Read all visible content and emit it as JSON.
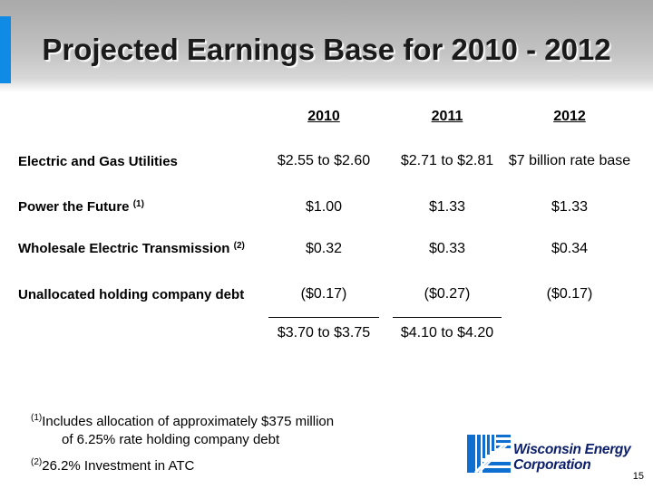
{
  "title": "Projected Earnings Base for 2010 - 2012",
  "columns": [
    "2010",
    "2011",
    "2012"
  ],
  "rows": [
    {
      "label": "Electric and Gas Utilities",
      "note": "",
      "values": [
        "$2.55 to $2.60",
        "$2.71 to $2.81",
        "$7 billion rate base"
      ]
    },
    {
      "label": "Power the Future",
      "note": "(1)",
      "values": [
        "$1.00",
        "$1.33",
        "$1.33"
      ]
    },
    {
      "label": "Wholesale Electric Transmission",
      "note": "(2)",
      "values": [
        "$0.32",
        "$0.33",
        "$0.34"
      ]
    },
    {
      "label": "Unallocated holding company debt",
      "note": "",
      "values": [
        "($0.17)",
        "($0.27)",
        "($0.17)"
      ]
    }
  ],
  "totals": [
    "$3.70 to $3.75",
    "$4.10 to $4.20"
  ],
  "footnotes": [
    {
      "marker": "(1)",
      "line1": "Includes allocation of approximately $375 million",
      "line2": "of 6.25% rate holding company debt"
    },
    {
      "marker": "(2)",
      "line1": "26.2% Investment in ATC"
    }
  ],
  "logo": {
    "line1": "Wisconsin Energy",
    "line2": "Corporation"
  },
  "page_number": "15",
  "colors": {
    "accent": "#0f8be6",
    "logo_blue": "#0b1e6b"
  }
}
